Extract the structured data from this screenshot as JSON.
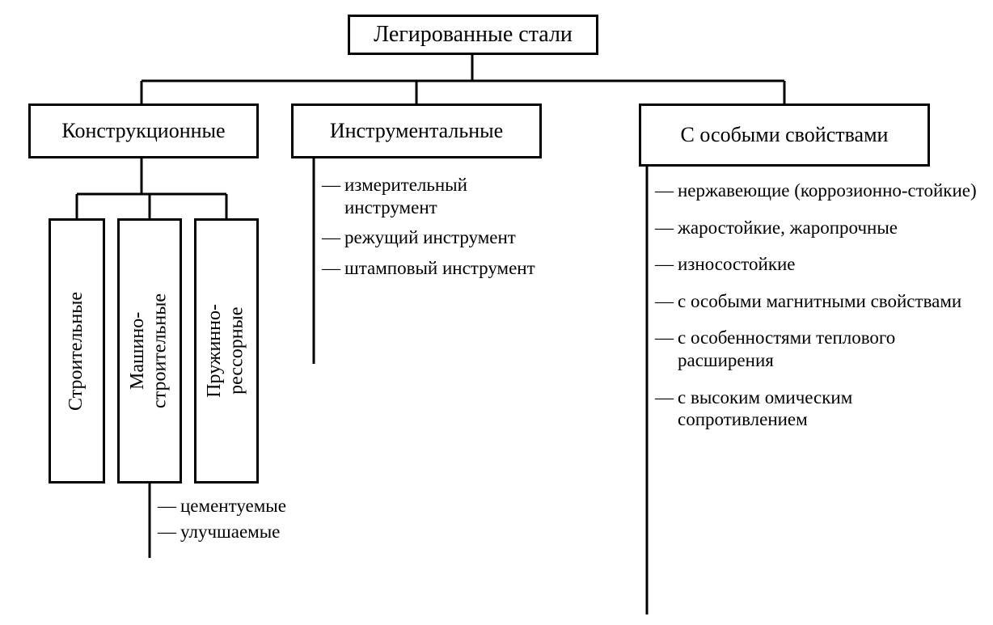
{
  "diagram": {
    "type": "tree",
    "background_color": "#ffffff",
    "border_color": "#000000",
    "border_width": 3,
    "font_family": "Times New Roman",
    "root": {
      "label": "Легированные стали",
      "fontsize": 28
    },
    "branches": [
      {
        "key": "structural",
        "label": "Конструкционные",
        "fontsize": 26,
        "children_boxes": [
          {
            "key": "building",
            "label": "Строительные",
            "fontsize": 24
          },
          {
            "key": "machine",
            "label": "Машино-\nстроительные",
            "fontsize": 24
          },
          {
            "key": "spring",
            "label": "Пружинно-\nрессорные",
            "fontsize": 24
          }
        ],
        "machine_sub_items": [
          "цементуемые",
          "улучшаемые"
        ]
      },
      {
        "key": "tool",
        "label": "Инструментальные",
        "fontsize": 26,
        "items": [
          "измерительный инструмент",
          "режущий инструмент",
          "штамповый инструмент"
        ]
      },
      {
        "key": "special",
        "label": "С особыми свойствами",
        "fontsize": 26,
        "items": [
          "нержавеющие (коррозионно-стойкие)",
          "жаростойкие, жаропрочные",
          "износостойкие",
          "с особыми магнитны­ми свойствами",
          "с особенностями теплового расширения",
          "с высоким омическим сопротивлением"
        ]
      }
    ],
    "list_fontsize": 23
  }
}
